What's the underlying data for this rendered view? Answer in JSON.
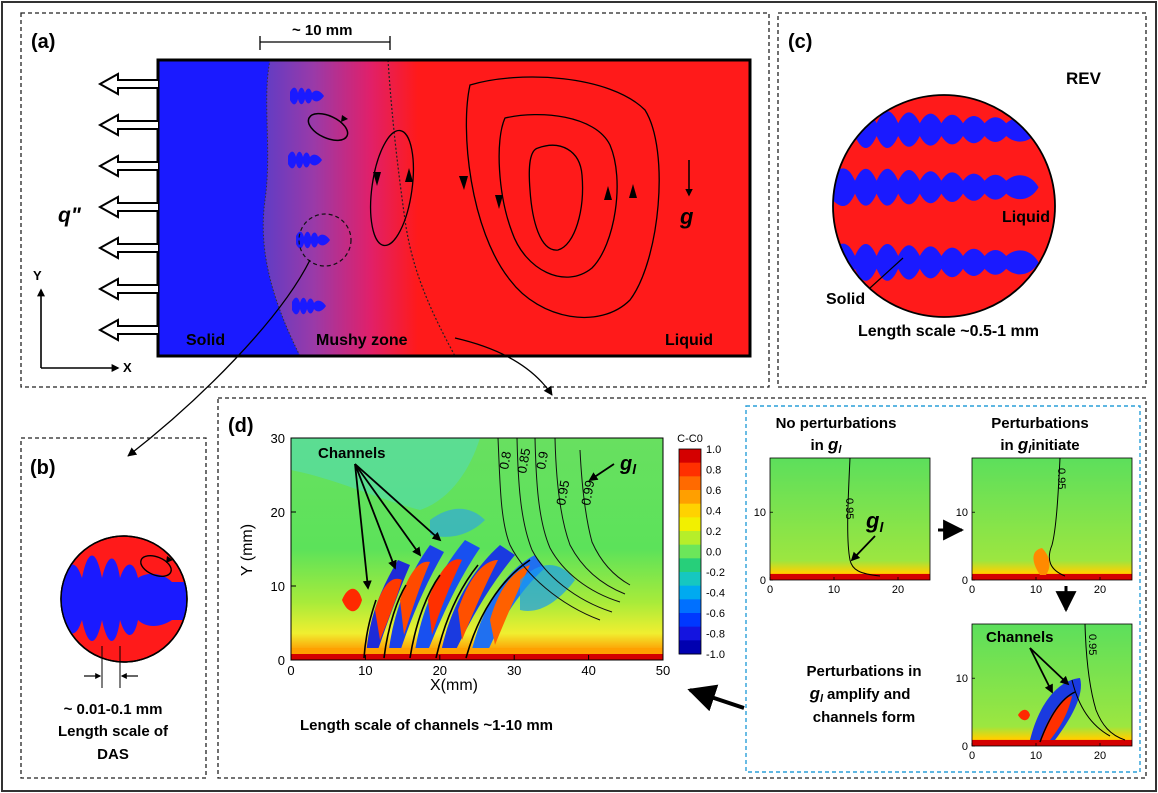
{
  "panel_a": {
    "label": "(a)",
    "scale_label": "~ 10 mm",
    "heat_flux": "q\"",
    "gravity": "g",
    "solid": "Solid",
    "mushy": "Mushy zone",
    "liquid": "Liquid",
    "axis_y": "Y",
    "axis_x": "X"
  },
  "panel_b": {
    "label": "(b)",
    "scale_value": "~ 0.01-0.1 mm",
    "caption_line1": "Length scale of",
    "caption_line2": "DAS"
  },
  "panel_c": {
    "label": "(c)",
    "rev": "REV",
    "liquid": "Liquid",
    "solid": "Solid",
    "caption": "Length scale ~0.5-1 mm"
  },
  "panel_d": {
    "label": "(d)",
    "channels_label": "Channels",
    "gl_label": "g",
    "gl_sub": "l",
    "colorbar_title": "C-C0",
    "colorbar_ticks": [
      "1.0",
      "0.8",
      "0.6",
      "0.4",
      "0.2",
      "0.0",
      "-0.2",
      "-0.4",
      "-0.6",
      "-0.8",
      "-1.0"
    ],
    "colorbar_colors": [
      "#d40000",
      "#ff3000",
      "#ff6a00",
      "#ff9f00",
      "#ffd200",
      "#f2f000",
      "#b6ee2a",
      "#6ce65a",
      "#27cf7a",
      "#16c7c0",
      "#00aaf0",
      "#0070ff",
      "#0038ff",
      "#1414e0",
      "#0000b0"
    ],
    "x_axis_label": "X(mm)",
    "y_axis_label": "Y (mm)",
    "x_ticks": [
      "0",
      "10",
      "20",
      "30",
      "40",
      "50"
    ],
    "y_ticks": [
      "0",
      "10",
      "20",
      "30"
    ],
    "contour_labels": [
      "0.8",
      "0.85",
      "0.9",
      "0.95",
      "0.99"
    ],
    "caption": "Length scale of channels ~1-10 mm",
    "inset": {
      "title1_line1": "No perturbations",
      "title1_line2": "in",
      "title2_line1": "Perturbations",
      "title2_line2": "in",
      "title2_line2_tail": "initiate",
      "contour_label": "0.95",
      "channels_label": "Channels",
      "caption_line1": "Perturbations in",
      "caption_line2_tail": "amplify and",
      "caption_line3": "channels form",
      "x_ticks": [
        "0",
        "10",
        "20"
      ],
      "y_ticks": [
        "0",
        "10"
      ]
    }
  }
}
